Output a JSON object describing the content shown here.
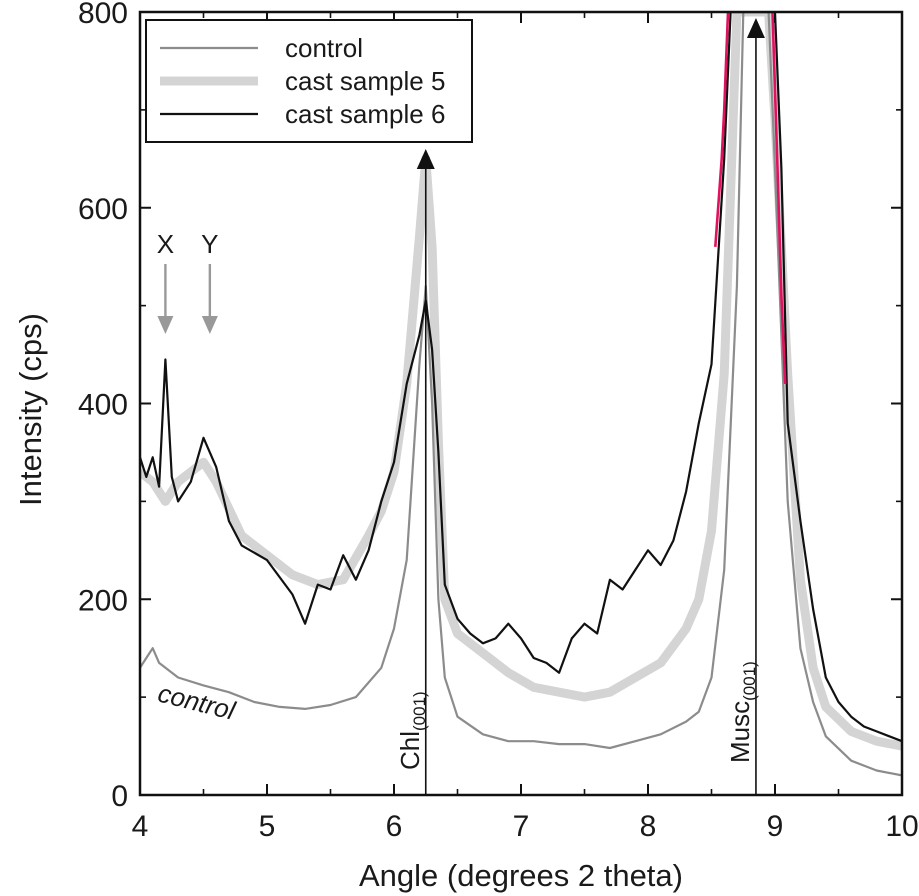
{
  "chart_data": {
    "type": "line",
    "xlabel": "Angle (degrees 2 theta)",
    "ylabel": "Intensity (cps)",
    "xlim": [
      4,
      10
    ],
    "ylim": [
      0,
      800
    ],
    "x_ticks": [
      4,
      5,
      6,
      7,
      8,
      9,
      10
    ],
    "y_ticks": [
      0,
      200,
      400,
      600,
      800
    ],
    "x_tick_labels": [
      "4",
      "5",
      "6",
      "7",
      "8",
      "9",
      "10"
    ],
    "y_tick_labels": [
      "0",
      "200",
      "400",
      "600",
      "800"
    ],
    "grid": false,
    "legend_position": "top-left",
    "series": [
      {
        "name": "control",
        "color": "#8c8c8c",
        "points": [
          [
            4.0,
            130
          ],
          [
            4.05,
            140
          ],
          [
            4.1,
            150
          ],
          [
            4.15,
            135
          ],
          [
            4.3,
            120
          ],
          [
            4.5,
            112
          ],
          [
            4.7,
            105
          ],
          [
            4.9,
            95
          ],
          [
            5.1,
            90
          ],
          [
            5.3,
            88
          ],
          [
            5.5,
            92
          ],
          [
            5.7,
            100
          ],
          [
            5.9,
            130
          ],
          [
            6.0,
            170
          ],
          [
            6.1,
            240
          ],
          [
            6.2,
            440
          ],
          [
            6.25,
            520
          ],
          [
            6.3,
            400
          ],
          [
            6.35,
            200
          ],
          [
            6.4,
            120
          ],
          [
            6.5,
            80
          ],
          [
            6.7,
            62
          ],
          [
            6.9,
            55
          ],
          [
            7.1,
            55
          ],
          [
            7.3,
            52
          ],
          [
            7.5,
            52
          ],
          [
            7.7,
            48
          ],
          [
            7.9,
            55
          ],
          [
            8.1,
            62
          ],
          [
            8.3,
            75
          ],
          [
            8.4,
            85
          ],
          [
            8.5,
            120
          ],
          [
            8.6,
            230
          ],
          [
            8.7,
            520
          ],
          [
            8.75,
            800
          ],
          [
            8.95,
            800
          ],
          [
            9.0,
            640
          ],
          [
            9.1,
            300
          ],
          [
            9.2,
            150
          ],
          [
            9.3,
            95
          ],
          [
            9.4,
            60
          ],
          [
            9.6,
            35
          ],
          [
            9.8,
            25
          ],
          [
            10.0,
            20
          ]
        ]
      },
      {
        "name": "cast sample 5",
        "color": "#d4d4d4",
        "points": [
          [
            4.0,
            330
          ],
          [
            4.1,
            320
          ],
          [
            4.2,
            300
          ],
          [
            4.3,
            320
          ],
          [
            4.5,
            340
          ],
          [
            4.6,
            320
          ],
          [
            4.8,
            265
          ],
          [
            5.0,
            245
          ],
          [
            5.2,
            225
          ],
          [
            5.4,
            215
          ],
          [
            5.6,
            220
          ],
          [
            5.8,
            265
          ],
          [
            5.9,
            290
          ],
          [
            6.0,
            330
          ],
          [
            6.1,
            420
          ],
          [
            6.2,
            570
          ],
          [
            6.25,
            650
          ],
          [
            6.3,
            560
          ],
          [
            6.35,
            360
          ],
          [
            6.4,
            200
          ],
          [
            6.5,
            165
          ],
          [
            6.7,
            145
          ],
          [
            6.9,
            125
          ],
          [
            7.1,
            110
          ],
          [
            7.3,
            105
          ],
          [
            7.5,
            100
          ],
          [
            7.7,
            105
          ],
          [
            7.9,
            120
          ],
          [
            8.1,
            135
          ],
          [
            8.3,
            170
          ],
          [
            8.4,
            200
          ],
          [
            8.5,
            270
          ],
          [
            8.6,
            430
          ],
          [
            8.7,
            800
          ],
          [
            8.95,
            800
          ],
          [
            9.0,
            690
          ],
          [
            9.1,
            430
          ],
          [
            9.2,
            220
          ],
          [
            9.3,
            130
          ],
          [
            9.4,
            90
          ],
          [
            9.6,
            65
          ],
          [
            9.8,
            55
          ],
          [
            10.0,
            50
          ]
        ]
      },
      {
        "name": "cast sample 6",
        "color": "#111111",
        "points": [
          [
            4.0,
            345
          ],
          [
            4.05,
            325
          ],
          [
            4.1,
            345
          ],
          [
            4.15,
            315
          ],
          [
            4.2,
            445
          ],
          [
            4.25,
            325
          ],
          [
            4.3,
            300
          ],
          [
            4.4,
            320
          ],
          [
            4.5,
            365
          ],
          [
            4.6,
            335
          ],
          [
            4.7,
            280
          ],
          [
            4.8,
            255
          ],
          [
            5.0,
            240
          ],
          [
            5.2,
            205
          ],
          [
            5.3,
            175
          ],
          [
            5.4,
            215
          ],
          [
            5.5,
            210
          ],
          [
            5.6,
            245
          ],
          [
            5.7,
            220
          ],
          [
            5.8,
            250
          ],
          [
            5.9,
            300
          ],
          [
            6.0,
            340
          ],
          [
            6.1,
            420
          ],
          [
            6.2,
            470
          ],
          [
            6.25,
            505
          ],
          [
            6.3,
            455
          ],
          [
            6.35,
            350
          ],
          [
            6.4,
            215
          ],
          [
            6.5,
            180
          ],
          [
            6.6,
            165
          ],
          [
            6.7,
            155
          ],
          [
            6.8,
            160
          ],
          [
            6.9,
            175
          ],
          [
            7.0,
            160
          ],
          [
            7.1,
            140
          ],
          [
            7.2,
            135
          ],
          [
            7.3,
            125
          ],
          [
            7.4,
            160
          ],
          [
            7.5,
            175
          ],
          [
            7.6,
            165
          ],
          [
            7.7,
            220
          ],
          [
            7.8,
            210
          ],
          [
            7.9,
            230
          ],
          [
            8.0,
            250
          ],
          [
            8.1,
            235
          ],
          [
            8.2,
            260
          ],
          [
            8.3,
            310
          ],
          [
            8.4,
            380
          ],
          [
            8.5,
            440
          ],
          [
            8.6,
            650
          ],
          [
            8.65,
            800
          ],
          [
            9.0,
            800
          ],
          [
            9.05,
            640
          ],
          [
            9.1,
            380
          ],
          [
            9.2,
            280
          ],
          [
            9.3,
            190
          ],
          [
            9.4,
            120
          ],
          [
            9.5,
            95
          ],
          [
            9.6,
            80
          ],
          [
            9.7,
            70
          ],
          [
            9.8,
            65
          ],
          [
            9.9,
            60
          ],
          [
            10.0,
            55
          ]
        ]
      }
    ],
    "peak_markers": [
      {
        "x": 6.25,
        "label": "Chl",
        "subscript": "(001)"
      },
      {
        "x": 8.85,
        "label": "Musc",
        "subscript": "(001)"
      }
    ],
    "arrow_annotations": [
      {
        "label": "X",
        "x": 4.2
      },
      {
        "label": "Y",
        "x": 4.55
      }
    ],
    "curve_annotation": {
      "label": "control",
      "x": 4.13,
      "y": 96
    },
    "highlight_color": "#e0115f"
  }
}
